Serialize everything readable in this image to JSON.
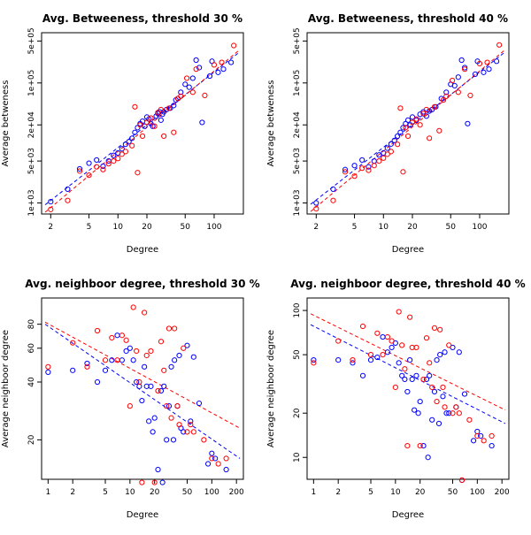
{
  "chart_data": [
    {
      "type": "scatter",
      "title": "Avg. Betweeness, threshold 30 %",
      "xlabel": "Degree",
      "ylabel": "Average betweness",
      "xscale": "log",
      "yscale": "log",
      "xlim": [
        1.75,
        185
      ],
      "ylim": [
        750,
        600000
      ],
      "xticks": [
        2,
        5,
        10,
        20,
        50,
        100
      ],
      "xtick_labels": [
        "2",
        "5",
        "10",
        "20",
        "50",
        "100"
      ],
      "yticks": [
        1000,
        5000,
        20000,
        100000,
        500000
      ],
      "ytick_labels": [
        "1e+03",
        "5e+03",
        "2e+04",
        "1e+05",
        "5e+05"
      ],
      "series": [
        {
          "color": "#0000ff",
          "x": [
            2,
            3,
            4,
            5,
            6,
            7,
            8,
            9,
            10,
            11,
            12,
            13,
            14,
            15,
            16,
            17,
            18,
            19,
            20,
            21,
            22,
            23,
            25,
            26,
            27,
            28,
            29,
            30,
            32,
            35,
            38,
            40,
            42,
            45,
            50,
            55,
            60,
            65,
            70,
            75,
            90,
            95,
            110,
            125,
            150
          ],
          "y": [
            1050,
            1700,
            3700,
            4600,
            5200,
            4100,
            5000,
            6200,
            6800,
            8000,
            9500,
            10500,
            12000,
            15000,
            18000,
            21000,
            23000,
            19000,
            27000,
            25000,
            21000,
            19000,
            28000,
            31000,
            33000,
            24000,
            30000,
            33000,
            36000,
            38000,
            42000,
            52000,
            55000,
            70000,
            95000,
            85000,
            120000,
            240000,
            180000,
            22000,
            130000,
            230000,
            150000,
            170000,
            220000
          ]
        },
        {
          "color": "#ff0000",
          "x": [
            2,
            3,
            4,
            5,
            6,
            7,
            8,
            9,
            10,
            11,
            12,
            14,
            15,
            16,
            17,
            18,
            20,
            22,
            24,
            26,
            28,
            30,
            34,
            38,
            42,
            45,
            52,
            60,
            65,
            80,
            100,
            120,
            160
          ],
          "y": [
            780,
            1100,
            3400,
            2900,
            4000,
            3600,
            4500,
            5000,
            5500,
            6500,
            7200,
            9000,
            40000,
            3200,
            20000,
            13000,
            22000,
            26000,
            19000,
            32000,
            36000,
            13000,
            38000,
            15000,
            55000,
            60000,
            120000,
            70000,
            170000,
            62000,
            200000,
            220000,
            420000
          ]
        }
      ],
      "fit_lines": [
        {
          "color": "#0000ff",
          "x": [
            1.75,
            185
          ],
          "y": [
            930,
            330000
          ]
        },
        {
          "color": "#ff0000",
          "x": [
            1.75,
            185
          ],
          "y": [
            700,
            360000
          ]
        }
      ]
    },
    {
      "type": "scatter",
      "title": "Avg. Betweeness, threshold 40 %",
      "xlabel": "Degree",
      "ylabel": "Average betweness",
      "xscale": "log",
      "yscale": "log",
      "xlim": [
        1.75,
        185
      ],
      "ylim": [
        750,
        600000
      ],
      "xticks": [
        2,
        5,
        10,
        20,
        50,
        100
      ],
      "xtick_labels": [
        "2",
        "5",
        "10",
        "20",
        "50",
        "100"
      ],
      "yticks": [
        1000,
        5000,
        20000,
        100000,
        500000
      ],
      "ytick_labels": [
        "1e+03",
        "5e+03",
        "2e+04",
        "1e+05",
        "5e+05"
      ],
      "series": [
        {
          "color": "#0000ff",
          "x": [
            2,
            3,
            4,
            5,
            6,
            7,
            8,
            9,
            10,
            11,
            12,
            13,
            14,
            15,
            16,
            17,
            18,
            19,
            20,
            22,
            24,
            26,
            28,
            30,
            32,
            35,
            40,
            45,
            50,
            55,
            60,
            65,
            70,
            75,
            90,
            95,
            110,
            125,
            150
          ],
          "y": [
            1000,
            1700,
            3600,
            4200,
            5200,
            4000,
            5000,
            6300,
            6800,
            8200,
            9600,
            11000,
            13000,
            15000,
            18000,
            21000,
            24000,
            20000,
            27000,
            24000,
            30000,
            33000,
            28000,
            34000,
            36000,
            40000,
            55000,
            70000,
            95000,
            90000,
            125000,
            240000,
            180000,
            21000,
            140000,
            230000,
            150000,
            170000,
            230000
          ]
        },
        {
          "color": "#ff0000",
          "x": [
            2,
            3,
            4,
            5,
            6,
            7,
            8,
            9,
            10,
            11,
            12,
            14,
            15,
            16,
            17,
            18,
            20,
            22,
            24,
            26,
            28,
            30,
            34,
            38,
            42,
            45,
            52,
            60,
            70,
            80,
            100,
            120,
            160
          ],
          "y": [
            800,
            1100,
            3300,
            2800,
            3800,
            3500,
            4200,
            5000,
            5600,
            6500,
            7200,
            9500,
            38000,
            3300,
            18000,
            13000,
            22000,
            25000,
            20000,
            31000,
            36000,
            12000,
            40000,
            16000,
            52000,
            60000,
            110000,
            70000,
            170000,
            62000,
            210000,
            220000,
            430000
          ]
        }
      ],
      "fit_lines": [
        {
          "color": "#0000ff",
          "x": [
            1.75,
            185
          ],
          "y": [
            950,
            330000
          ]
        },
        {
          "color": "#ff0000",
          "x": [
            1.75,
            185
          ],
          "y": [
            720,
            360000
          ]
        }
      ]
    },
    {
      "type": "scatter",
      "title": "Avg. neighboor degree, threshold 30 %",
      "xlabel": "Degree",
      "ylabel": "Average neighboor degree",
      "xscale": "log",
      "yscale": "log",
      "xlim": [
        0.92,
        220
      ],
      "ylim": [
        13,
        105
      ],
      "xticks": [
        1,
        2,
        5,
        10,
        20,
        50,
        100,
        200
      ],
      "xtick_labels": [
        "1",
        "2",
        "5",
        "10",
        "20",
        "50",
        "100",
        "200"
      ],
      "yticks": [
        20,
        40,
        60,
        80
      ],
      "ytick_labels": [
        "20",
        "40",
        "60",
        "80"
      ],
      "series": [
        {
          "color": "#0000ff",
          "x": [
            1,
            2,
            3,
            4,
            5,
            6,
            7,
            8,
            9,
            10,
            11,
            12,
            13,
            14,
            15,
            16,
            17,
            18,
            19,
            20,
            22,
            24,
            25,
            26,
            28,
            30,
            32,
            34,
            35,
            38,
            40,
            42,
            45,
            50,
            55,
            60,
            70,
            90,
            100,
            110,
            150
          ],
          "y": [
            45,
            46,
            50,
            40,
            46,
            52,
            70,
            52,
            58,
            60,
            52,
            40,
            38,
            32,
            48,
            38,
            25,
            38,
            22,
            26,
            14,
            36,
            12,
            38,
            20,
            30,
            48,
            20,
            52,
            30,
            55,
            23,
            22,
            62,
            25,
            54,
            31,
            15,
            17,
            16,
            14
          ]
        },
        {
          "color": "#ff0000",
          "x": [
            1,
            2,
            3,
            4,
            5,
            6,
            7,
            8,
            9,
            10,
            11,
            12,
            13,
            14,
            15,
            16,
            18,
            20,
            22,
            24,
            26,
            28,
            30,
            32,
            35,
            38,
            40,
            45,
            50,
            55,
            60,
            80,
            100,
            120,
            150
          ],
          "y": [
            48,
            64,
            48,
            74,
            52,
            68,
            52,
            70,
            66,
            30,
            98,
            58,
            40,
            12,
            92,
            55,
            58,
            12,
            36,
            65,
            46,
            30,
            76,
            26,
            76,
            30,
            24,
            60,
            22,
            24,
            22,
            20,
            16,
            15,
            16
          ]
        }
      ],
      "fit_lines": [
        {
          "color": "#0000ff",
          "x": [
            0.92,
            220
          ],
          "y": [
            80,
            16
          ]
        },
        {
          "color": "#ff0000",
          "x": [
            0.92,
            220
          ],
          "y": [
            82,
            23
          ]
        }
      ]
    },
    {
      "type": "scatter",
      "title": "Avg. neighboor degree, threshold 40 %",
      "xlabel": "Degree",
      "ylabel": "Average neighboor degree",
      "xscale": "log",
      "yscale": "log",
      "xlim": [
        0.92,
        220
      ],
      "ylim": [
        7.5,
        115
      ],
      "xticks": [
        1,
        2,
        5,
        10,
        20,
        50,
        100,
        200
      ],
      "xtick_labels": [
        "1",
        "2",
        "5",
        "10",
        "20",
        "50",
        "100",
        "200"
      ],
      "yticks": [
        10,
        20,
        50,
        100
      ],
      "ytick_labels": [
        "10",
        "20",
        "50",
        "100"
      ],
      "series": [
        {
          "color": "#0000ff",
          "x": [
            1,
            2,
            3,
            4,
            5,
            6,
            7,
            8,
            9,
            10,
            11,
            12,
            13,
            14,
            15,
            16,
            17,
            18,
            19,
            20,
            22,
            24,
            25,
            26,
            28,
            30,
            32,
            34,
            35,
            38,
            40,
            42,
            45,
            50,
            55,
            60,
            65,
            70,
            90,
            100,
            110,
            150
          ],
          "y": [
            46,
            46,
            44,
            36,
            46,
            48,
            66,
            52,
            56,
            60,
            44,
            36,
            34,
            28,
            46,
            34,
            21,
            36,
            20,
            24,
            12,
            34,
            10,
            36,
            18,
            28,
            46,
            17,
            50,
            26,
            52,
            20,
            20,
            56,
            22,
            52,
            7,
            27,
            13,
            15,
            14,
            12
          ]
        },
        {
          "color": "#ff0000",
          "x": [
            1,
            2,
            3,
            4,
            5,
            6,
            7,
            8,
            9,
            10,
            11,
            12,
            13,
            14,
            15,
            16,
            18,
            20,
            22,
            24,
            26,
            28,
            30,
            32,
            35,
            38,
            40,
            45,
            50,
            55,
            60,
            65,
            80,
            100,
            120,
            150
          ],
          "y": [
            44,
            62,
            46,
            78,
            50,
            70,
            50,
            66,
            62,
            30,
            98,
            58,
            40,
            12,
            90,
            56,
            56,
            12,
            34,
            65,
            44,
            30,
            76,
            24,
            74,
            30,
            22,
            58,
            20,
            22,
            20,
            7,
            18,
            14,
            13,
            14
          ]
        }
      ],
      "fit_lines": [
        {
          "color": "#0000ff",
          "x": [
            0.92,
            220
          ],
          "y": [
            80,
            17
          ]
        },
        {
          "color": "#ff0000",
          "x": [
            0.92,
            220
          ],
          "y": [
            95,
            21
          ]
        }
      ]
    }
  ]
}
